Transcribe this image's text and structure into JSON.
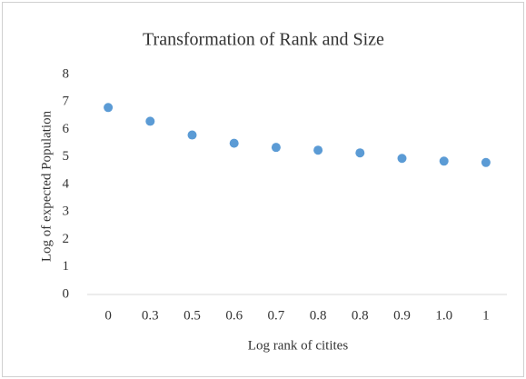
{
  "chart_data": {
    "type": "scatter",
    "title": "Transformation of Rank and Size",
    "x_label": "Log rank of citites",
    "y_label": "Log of expected Population",
    "categories": [
      "0",
      "0.3",
      "0.5",
      "0.6",
      "0.7",
      "0.8",
      "0.8",
      "0.9",
      "1.0",
      "1"
    ],
    "values": [
      6.8,
      6.3,
      5.8,
      5.5,
      5.35,
      5.25,
      5.15,
      4.95,
      4.85,
      4.8
    ],
    "color": "#5b9bd5",
    "ylim": [
      0,
      8
    ],
    "yticks": [
      0,
      1,
      2,
      3,
      4,
      5,
      6,
      7,
      8
    ],
    "grid": false
  }
}
